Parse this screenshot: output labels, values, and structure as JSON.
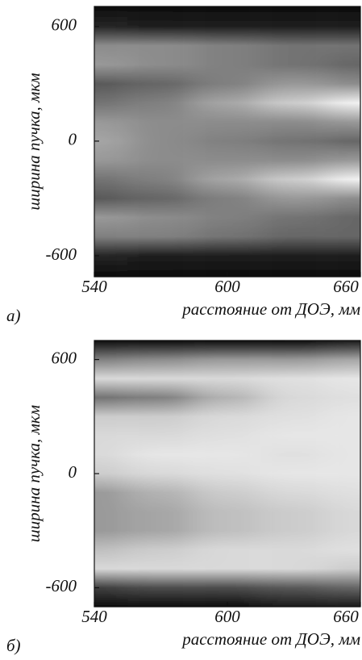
{
  "chart_data": [
    {
      "type": "heatmap",
      "panel_label": "а)",
      "xlabel": "расстояние от ДОЭ, мм",
      "ylabel": "ширина пучка, мкм",
      "xlim": [
        540,
        660
      ],
      "xticks": [
        540,
        600,
        660
      ],
      "ylim": [
        -710,
        705
      ],
      "yticks": [
        -600,
        0,
        600
      ],
      "x": [
        540,
        570,
        600,
        630,
        660
      ],
      "y": [
        700,
        600,
        500,
        400,
        300,
        200,
        100,
        0,
        -100,
        -200,
        -300,
        -400,
        -500,
        -600,
        -700
      ],
      "values": [
        [
          0.05,
          0.15,
          0.55,
          0.6,
          0.35,
          0.45,
          0.6,
          0.65,
          0.6,
          0.45,
          0.35,
          0.6,
          0.5,
          0.15,
          0.05
        ],
        [
          0.05,
          0.12,
          0.55,
          0.55,
          0.4,
          0.5,
          0.55,
          0.55,
          0.55,
          0.5,
          0.4,
          0.55,
          0.5,
          0.12,
          0.05
        ],
        [
          0.05,
          0.12,
          0.5,
          0.5,
          0.5,
          0.65,
          0.55,
          0.5,
          0.55,
          0.65,
          0.5,
          0.5,
          0.45,
          0.12,
          0.05
        ],
        [
          0.05,
          0.12,
          0.45,
          0.45,
          0.6,
          0.8,
          0.55,
          0.45,
          0.55,
          0.8,
          0.6,
          0.45,
          0.4,
          0.12,
          0.05
        ],
        [
          0.05,
          0.12,
          0.45,
          0.4,
          0.55,
          0.95,
          0.6,
          0.4,
          0.6,
          0.95,
          0.55,
          0.4,
          0.4,
          0.12,
          0.05
        ]
      ]
    },
    {
      "type": "heatmap",
      "panel_label": "б)",
      "xlabel": "расстояние от ДОЭ, мм",
      "ylabel": "ширина пучка, мкм",
      "xlim": [
        540,
        660
      ],
      "xticks": [
        540,
        600,
        660
      ],
      "ylim": [
        -700,
        700
      ],
      "yticks": [
        -600,
        0,
        600
      ],
      "x": [
        540,
        570,
        600,
        630,
        660
      ],
      "y": [
        700,
        600,
        500,
        400,
        300,
        200,
        100,
        0,
        -100,
        -200,
        -300,
        -400,
        -500,
        -600,
        -700
      ],
      "values": [
        [
          0.05,
          0.5,
          0.85,
          0.45,
          0.8,
          0.85,
          0.85,
          0.8,
          0.6,
          0.6,
          0.6,
          0.75,
          0.85,
          0.25,
          0.05
        ],
        [
          0.05,
          0.55,
          0.85,
          0.5,
          0.8,
          0.85,
          0.9,
          0.85,
          0.7,
          0.65,
          0.65,
          0.8,
          0.85,
          0.3,
          0.05
        ],
        [
          0.05,
          0.6,
          0.85,
          0.7,
          0.85,
          0.88,
          0.9,
          0.88,
          0.8,
          0.75,
          0.75,
          0.85,
          0.85,
          0.3,
          0.05
        ],
        [
          0.05,
          0.6,
          0.88,
          0.85,
          0.88,
          0.9,
          0.88,
          0.9,
          0.85,
          0.8,
          0.8,
          0.85,
          0.85,
          0.35,
          0.1
        ],
        [
          0.1,
          0.65,
          0.9,
          0.88,
          0.9,
          0.9,
          0.9,
          0.9,
          0.88,
          0.85,
          0.85,
          0.88,
          0.8,
          0.4,
          0.1
        ]
      ]
    }
  ]
}
